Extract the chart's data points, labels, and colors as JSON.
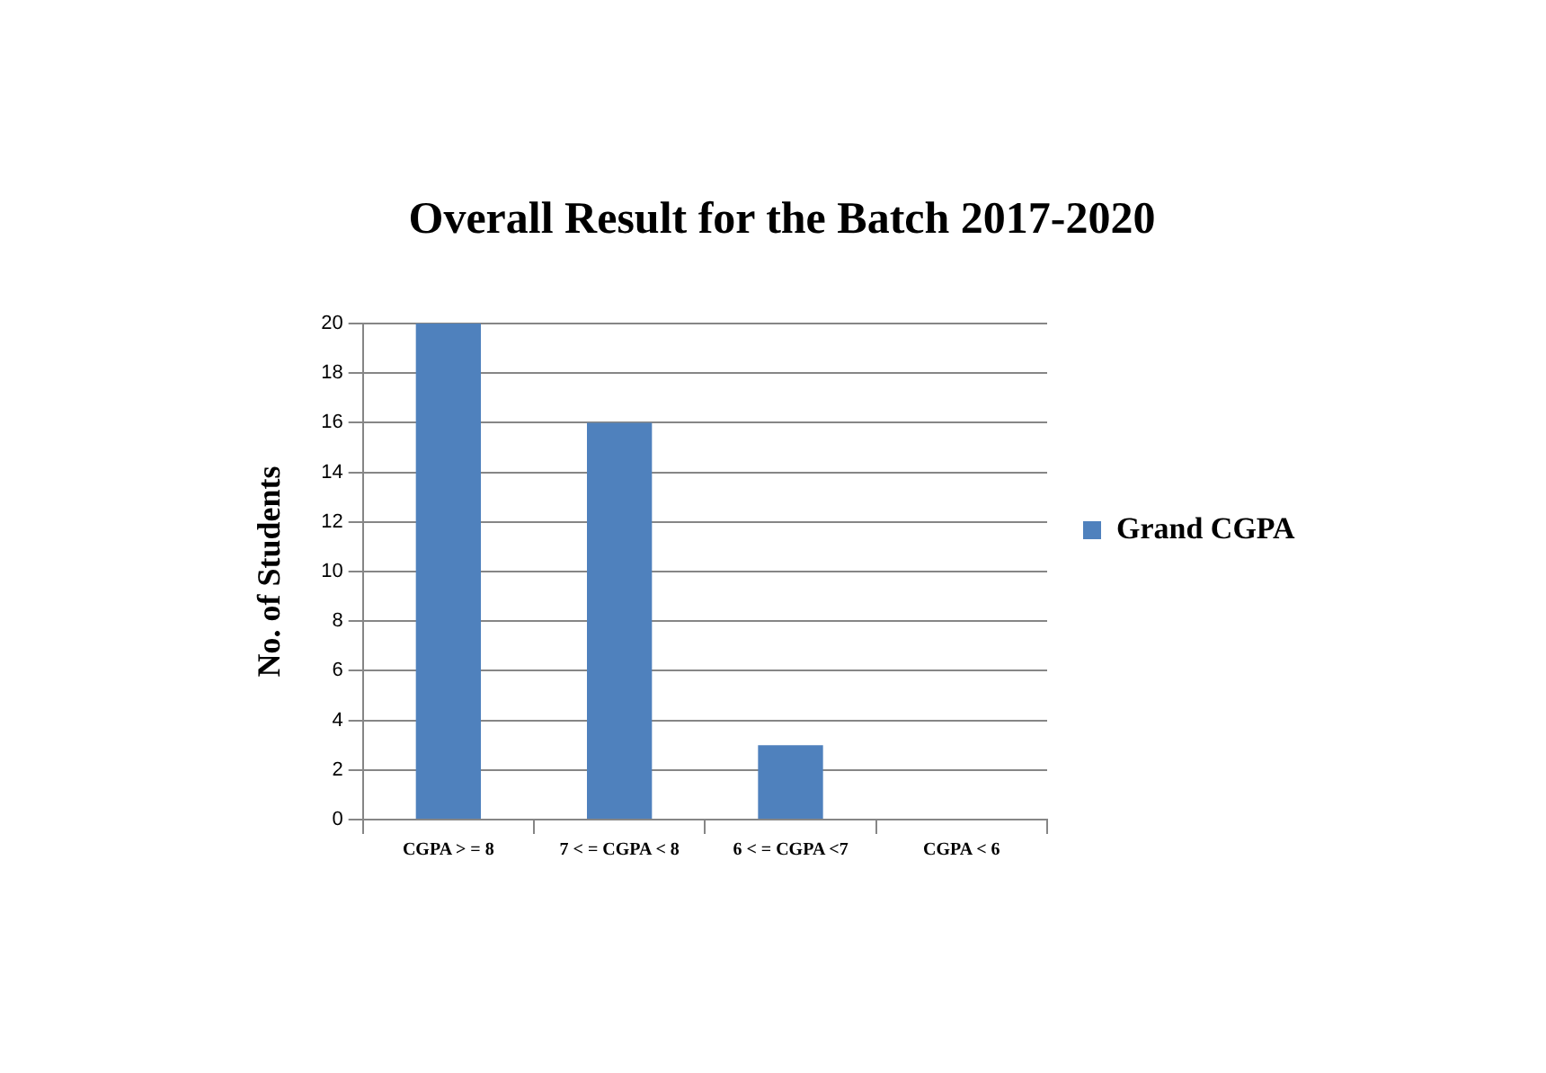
{
  "chart_data": {
    "type": "bar",
    "title": "Overall Result for the Batch 2017-2020",
    "ylabel": "No. of Students",
    "categories": [
      "CGPA > = 8",
      "7 < = CGPA < 8",
      "6 < = CGPA <7",
      "CGPA < 6"
    ],
    "series": [
      {
        "name": "Grand CGPA",
        "color": "#4f81bd",
        "values": [
          20,
          16,
          3,
          0
        ]
      }
    ],
    "ylim": [
      0,
      20
    ],
    "yticks": [
      0,
      2,
      4,
      6,
      8,
      10,
      12,
      14,
      16,
      18,
      20
    ],
    "grid": "y",
    "legend": "right"
  }
}
